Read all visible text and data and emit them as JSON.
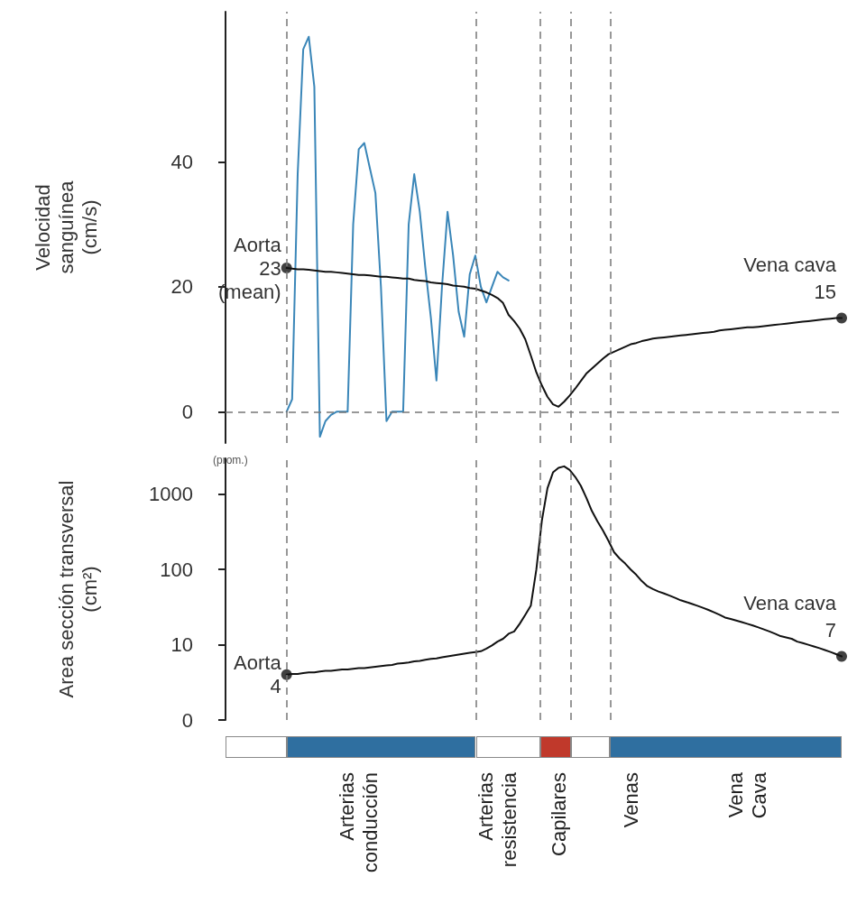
{
  "chart_data": [
    {
      "type": "line",
      "ylabel": "Velocidad\nsanguínea\n(cm/s)",
      "ylim": [
        -5,
        64
      ],
      "yticks": [
        0,
        20,
        40
      ],
      "tick_labels": "y",
      "grid": false,
      "marker": "none",
      "line_style": "solid",
      "categories": [
        null,
        null,
        null,
        null,
        null,
        null,
        null,
        null,
        null,
        null,
        null,
        null,
        null,
        null,
        null,
        null,
        null,
        null,
        null,
        null,
        null,
        null,
        null,
        null,
        null,
        null,
        null,
        null,
        null,
        null,
        null,
        null,
        null,
        null,
        null,
        null,
        null,
        null,
        null,
        null,
        null,
        null,
        null,
        null,
        null,
        null,
        null,
        null,
        null,
        null,
        null,
        null,
        null,
        null,
        null,
        null,
        null,
        null,
        null,
        null,
        null,
        null,
        null,
        null,
        null,
        null,
        null,
        null,
        null,
        null,
        null,
        null,
        null,
        null,
        null,
        null,
        null,
        null,
        null,
        null,
        null,
        null,
        null,
        null,
        null,
        null,
        null,
        null,
        null,
        null,
        null,
        null,
        null,
        null,
        null,
        null,
        null,
        null,
        null,
        null,
        null,
        null,
        null,
        null,
        null,
        null,
        null,
        null,
        null,
        null,
        null,
        null
      ],
      "series": [
        {
          "color": "#3a86b8",
          "values": [
            null,
            null,
            null,
            null,
            null,
            null,
            null,
            null,
            null,
            null,
            null,
            0,
            2,
            38,
            58,
            60,
            52,
            -4,
            -1.5,
            -0.5,
            0,
            0,
            0,
            30,
            42,
            43,
            39,
            35,
            20,
            -1.5,
            0,
            0,
            0,
            30,
            38,
            32,
            23,
            15,
            5,
            20,
            32,
            25,
            16,
            12,
            22,
            25,
            20,
            17.5,
            20,
            22.4,
            21.5,
            21,
            null,
            null,
            null,
            null,
            null,
            null,
            null,
            null,
            null,
            null,
            null,
            null,
            null,
            null,
            null,
            null,
            null,
            null,
            null,
            null,
            null,
            null,
            null,
            null,
            null,
            null,
            null,
            null,
            null,
            null,
            null,
            null,
            null,
            null,
            null,
            null,
            null,
            null,
            null,
            null,
            null,
            null,
            null,
            null,
            null,
            null,
            null,
            null,
            null,
            null,
            null,
            null,
            null,
            null,
            null,
            null,
            null,
            null,
            null,
            null
          ]
        },
        {
          "color": "#111111",
          "values": [
            null,
            null,
            null,
            null,
            null,
            null,
            null,
            null,
            null,
            null,
            null,
            23,
            22.9,
            22.8,
            22.8,
            22.7,
            22.6,
            22.5,
            22.4,
            22.4,
            22.3,
            22.2,
            22.1,
            22,
            21.9,
            21.9,
            21.8,
            21.7,
            21.6,
            21.6,
            21.5,
            21.4,
            21.3,
            21.3,
            21.1,
            21,
            20.9,
            20.7,
            20.6,
            20.5,
            20.4,
            20.2,
            20.1,
            20,
            19.8,
            19.7,
            19.4,
            19.1,
            18.7,
            18.2,
            17.4,
            15.5,
            14.5,
            13.3,
            11.6,
            9,
            6.3,
            4.2,
            2.4,
            1.2,
            0.8,
            1.6,
            2.6,
            3.7,
            4.9,
            6.1,
            6.9,
            7.7,
            8.5,
            9.2,
            9.6,
            10,
            10.4,
            10.8,
            11,
            11.3,
            11.5,
            11.7,
            11.8,
            11.9,
            12,
            12.1,
            12.2,
            12.3,
            12.4,
            12.5,
            12.6,
            12.7,
            12.8,
            13,
            13.1,
            13.2,
            13.3,
            13.4,
            13.5,
            13.5,
            13.6,
            13.7,
            13.8,
            13.9,
            14,
            14.1,
            14.2,
            14.3,
            14.4,
            14.5,
            14.6,
            14.7,
            14.8,
            14.9,
            15,
            15
          ]
        },
        {
          "type": "scatter",
          "marker": "circle",
          "color": "#111111",
          "values": [
            null,
            null,
            null,
            null,
            null,
            null,
            null,
            null,
            null,
            null,
            null,
            23,
            null,
            null,
            null,
            null,
            null,
            null,
            null,
            null,
            null,
            null,
            null,
            null,
            null,
            null,
            null,
            null,
            null,
            null,
            null,
            null,
            null,
            null,
            null,
            null,
            null,
            null,
            null,
            null,
            null,
            null,
            null,
            null,
            null,
            null,
            null,
            null,
            null,
            null,
            null,
            null,
            null,
            null,
            null,
            null,
            null,
            null,
            null,
            null,
            null,
            null,
            null,
            null,
            null,
            null,
            null,
            null,
            null,
            null,
            null,
            null,
            null,
            null,
            null,
            null,
            null,
            null,
            null,
            null,
            null,
            null,
            null,
            null,
            null,
            null,
            null,
            null,
            null,
            null,
            null,
            null,
            null,
            null,
            null,
            null,
            null,
            null,
            null,
            null,
            null,
            null,
            null,
            null,
            null,
            null,
            null,
            null,
            null,
            null,
            null,
            15
          ]
        }
      ],
      "ref_lines": [
        {
          "axis": "y",
          "value": 0,
          "color": "#777777",
          "line_style": "dashed"
        }
      ],
      "annotations": [
        "Aorta\n23\n(mean)",
        "Vena cava\n15"
      ]
    },
    {
      "type": "line",
      "ylabel": "Area sección transversal\n(cm²)",
      "log": "y",
      "ylim": [
        0,
        3000
      ],
      "yticks": [
        0,
        10,
        100,
        1000
      ],
      "grid": false,
      "marker": "none",
      "line_style": "solid",
      "categories": [
        null,
        null,
        null,
        null,
        null,
        null,
        null,
        null,
        null,
        null,
        null,
        null,
        null,
        null,
        null,
        null,
        null,
        null,
        null,
        null,
        null,
        null,
        null,
        null,
        "Arterias\nconducción",
        null,
        null,
        null,
        null,
        null,
        null,
        null,
        null,
        null,
        null,
        null,
        null,
        null,
        null,
        null,
        null,
        null,
        null,
        null,
        null,
        null,
        null,
        null,
        null,
        "Arterias\nresistencia",
        null,
        null,
        null,
        null,
        null,
        null,
        null,
        null,
        null,
        null,
        "Capilares",
        null,
        null,
        null,
        null,
        null,
        null,
        null,
        null,
        null,
        null,
        null,
        null,
        "Venas",
        null,
        null,
        null,
        null,
        null,
        null,
        null,
        null,
        null,
        null,
        null,
        null,
        null,
        null,
        null,
        null,
        null,
        null,
        null,
        null,
        "Vena\nCava",
        null,
        null,
        null,
        null,
        null,
        null,
        null,
        null,
        null,
        null,
        null,
        null,
        null,
        null,
        null,
        null,
        null
      ],
      "series": [
        {
          "color": "#111111",
          "values": [
            null,
            null,
            null,
            null,
            null,
            null,
            null,
            null,
            null,
            null,
            null,
            4,
            4.1,
            4.1,
            4.2,
            4.3,
            4.3,
            4.4,
            4.5,
            4.5,
            4.6,
            4.7,
            4.7,
            4.8,
            4.9,
            4.9,
            5,
            5.1,
            5.2,
            5.3,
            5.4,
            5.6,
            5.7,
            5.8,
            6,
            6.1,
            6.3,
            6.5,
            6.6,
            6.8,
            7,
            7.2,
            7.4,
            7.6,
            7.8,
            8,
            8.2,
            8.9,
            9.8,
            11,
            12,
            14,
            15,
            19,
            25,
            33,
            100,
            450,
            1200,
            1950,
            2250,
            2350,
            2100,
            1700,
            1300,
            900,
            600,
            437,
            330,
            240,
            170,
            140,
            120,
            100,
            85,
            70,
            60,
            55,
            51,
            48,
            45,
            42,
            39,
            37,
            35,
            33,
            31,
            29,
            27,
            25,
            23,
            22,
            21,
            20,
            19,
            18,
            17,
            16,
            15,
            14,
            13,
            12.5,
            12,
            11,
            10.5,
            10,
            9.5,
            9,
            8.5,
            8,
            7.5,
            7
          ]
        },
        {
          "type": "scatter",
          "marker": "circle",
          "color": "#111111",
          "values": [
            null,
            null,
            null,
            null,
            null,
            null,
            null,
            null,
            null,
            null,
            null,
            4,
            null,
            null,
            null,
            null,
            null,
            null,
            null,
            null,
            null,
            null,
            null,
            null,
            null,
            null,
            null,
            null,
            null,
            null,
            null,
            null,
            null,
            null,
            null,
            null,
            null,
            null,
            null,
            null,
            null,
            null,
            null,
            null,
            null,
            null,
            null,
            null,
            null,
            null,
            null,
            null,
            null,
            null,
            null,
            null,
            null,
            null,
            null,
            null,
            null,
            null,
            null,
            null,
            null,
            null,
            null,
            null,
            null,
            null,
            null,
            null,
            null,
            null,
            null,
            null,
            null,
            null,
            null,
            null,
            null,
            null,
            null,
            null,
            null,
            null,
            null,
            null,
            null,
            null,
            null,
            null,
            null,
            null,
            null,
            null,
            null,
            null,
            null,
            null,
            null,
            null,
            null,
            null,
            null,
            null,
            null,
            null,
            null,
            null,
            null,
            7
          ]
        }
      ],
      "annotations": [
        "Aorta\n4",
        "Vena cava\n7",
        "(prom.)"
      ]
    }
  ]
}
